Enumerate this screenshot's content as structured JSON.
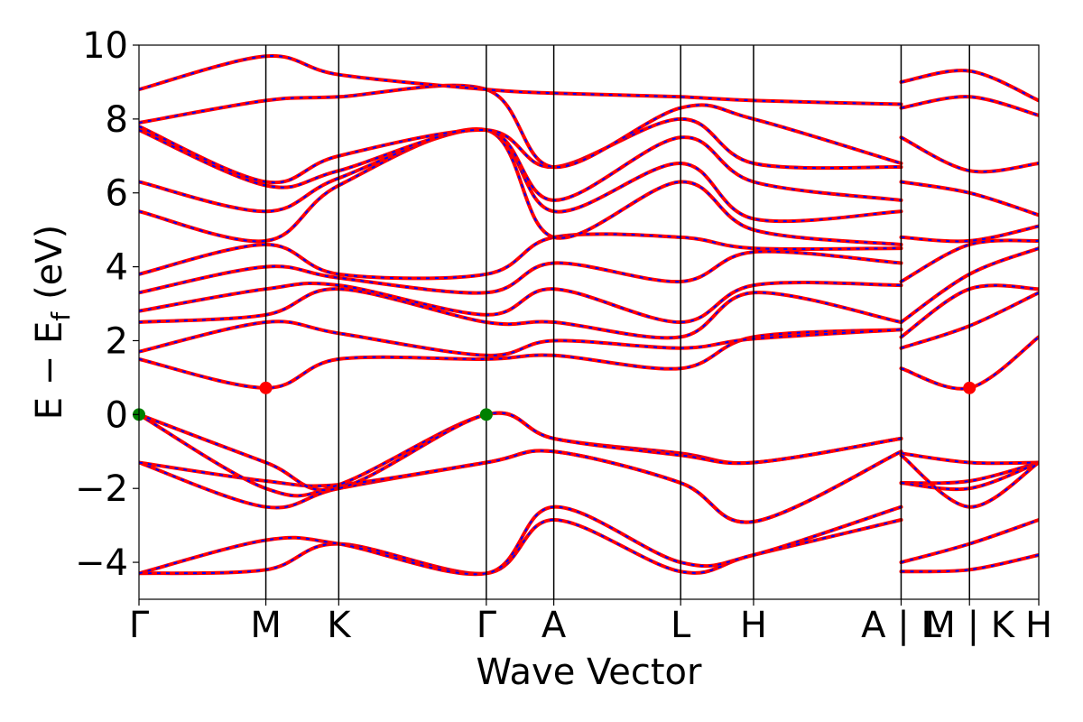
{
  "chart_data": {
    "type": "line",
    "title": "",
    "xlabel": "Wave Vector",
    "ylabel": {
      "main": "E − E",
      "subscript": "f",
      "unit": "(eV)"
    },
    "ylim": [
      -5,
      10
    ],
    "yticks": [
      {
        "value": 10,
        "label": "10"
      },
      {
        "value": 8,
        "label": "8"
      },
      {
        "value": 6,
        "label": "6"
      },
      {
        "value": 4,
        "label": "4"
      },
      {
        "value": 2,
        "label": "2"
      },
      {
        "value": 0,
        "label": "0"
      },
      {
        "value": -2,
        "label": "−2"
      },
      {
        "value": -4,
        "label": "−4"
      }
    ],
    "kpath_length": 1.0,
    "kpoint_ticks": [
      {
        "k": 0.0,
        "label": "Γ"
      },
      {
        "k": 0.141,
        "label": "M"
      },
      {
        "k": 0.222,
        "label": "K"
      },
      {
        "k": 0.386,
        "label": "Γ"
      },
      {
        "k": 0.461,
        "label": "A"
      },
      {
        "k": 0.602,
        "label": "L"
      },
      {
        "k": 0.683,
        "label": "H"
      },
      {
        "k": 0.847,
        "label": "A | L"
      },
      {
        "k": 0.923,
        "label": "M | K"
      },
      {
        "k": 1.0,
        "label": "H"
      }
    ],
    "path_breaks": [
      0.847,
      0.923
    ],
    "grid": false,
    "legend": "none",
    "series_styles": [
      {
        "role": "overlay",
        "color": "#ff0000",
        "dash": "solid"
      },
      {
        "role": "underlay",
        "color": "#0000ff",
        "dash": "dashed"
      }
    ],
    "extrema": [
      {
        "type": "VBM",
        "k": 0.0,
        "energy": 0.0,
        "color": "#008000"
      },
      {
        "type": "VBM",
        "k": 0.386,
        "energy": 0.0,
        "color": "#008000"
      },
      {
        "type": "CBM",
        "k": 0.141,
        "energy": 0.72,
        "color": "#ff0000"
      },
      {
        "type": "CBM",
        "k": 0.923,
        "energy": 0.72,
        "color": "#ff0000"
      }
    ],
    "bands": [
      {
        "k": [
          0,
          0.141,
          0.222,
          0.386,
          0.461,
          0.602,
          0.683,
          0.847
        ],
        "e": [
          -4.3,
          -4.2,
          -3.5,
          -4.3,
          -2.85,
          -4.25,
          -3.8,
          -2.85
        ]
      },
      {
        "k": [
          0,
          0.141,
          0.222,
          0.386,
          0.461,
          0.602,
          0.683,
          0.847
        ],
        "e": [
          -4.3,
          -3.4,
          -3.5,
          -4.3,
          -2.5,
          -4.0,
          -3.8,
          -2.5
        ]
      },
      {
        "k": [
          0,
          0.141,
          0.222,
          0.386,
          0.461,
          0.602,
          0.683,
          0.847
        ],
        "e": [
          -1.3,
          -2.5,
          -2.0,
          -1.3,
          -1.0,
          -1.85,
          -2.9,
          -1.0
        ]
      },
      {
        "k": [
          0,
          0.141,
          0.222,
          0.386,
          0.461,
          0.602,
          0.683,
          0.847
        ],
        "e": [
          -1.3,
          -1.8,
          -1.9,
          -1.3,
          -1.0,
          -1.85,
          -2.9,
          -1.0
        ]
      },
      {
        "k": [
          0,
          0.141,
          0.222,
          0.386,
          0.461,
          0.602,
          0.683,
          0.847
        ],
        "e": [
          0.0,
          -2.0,
          -1.9,
          0.0,
          -0.65,
          -1.05,
          -1.3,
          -0.65
        ]
      },
      {
        "k": [
          0,
          0.141,
          0.222,
          0.386,
          0.461,
          0.602,
          0.683,
          0.847
        ],
        "e": [
          0.0,
          -1.3,
          -2.0,
          0.0,
          -0.65,
          -1.1,
          -1.3,
          -0.65
        ]
      },
      {
        "k": [
          0,
          0.141,
          0.222,
          0.386,
          0.461,
          0.602,
          0.683,
          0.847
        ],
        "e": [
          1.5,
          0.72,
          1.5,
          1.5,
          1.6,
          1.25,
          2.1,
          2.3
        ]
      },
      {
        "k": [
          0,
          0.141,
          0.222,
          0.386,
          0.461,
          0.602,
          0.683,
          0.847
        ],
        "e": [
          1.7,
          2.5,
          2.2,
          1.6,
          2.0,
          1.8,
          2.05,
          2.3
        ]
      },
      {
        "k": [
          0,
          0.141,
          0.222,
          0.386,
          0.461,
          0.602,
          0.683,
          0.847
        ],
        "e": [
          2.5,
          2.7,
          3.4,
          2.5,
          2.5,
          2.1,
          3.3,
          2.5
        ]
      },
      {
        "k": [
          0,
          0.141,
          0.222,
          0.386,
          0.461,
          0.602,
          0.683,
          0.847
        ],
        "e": [
          2.8,
          3.4,
          3.5,
          2.7,
          3.4,
          2.5,
          3.5,
          3.5
        ]
      },
      {
        "k": [
          0,
          0.141,
          0.222,
          0.386,
          0.461,
          0.602,
          0.683,
          0.847
        ],
        "e": [
          3.3,
          4.0,
          3.7,
          3.3,
          4.1,
          3.6,
          4.4,
          4.1
        ]
      },
      {
        "k": [
          0,
          0.141,
          0.222,
          0.386,
          0.461,
          0.602,
          0.683,
          0.847
        ],
        "e": [
          3.8,
          4.6,
          3.8,
          3.8,
          4.8,
          4.8,
          4.5,
          4.5
        ]
      },
      {
        "k": [
          0,
          0.141,
          0.222,
          0.386,
          0.461,
          0.602,
          0.683,
          0.847
        ],
        "e": [
          5.5,
          4.7,
          6.2,
          7.7,
          4.8,
          6.3,
          5.0,
          4.6
        ]
      },
      {
        "k": [
          0,
          0.141,
          0.222,
          0.386,
          0.461,
          0.602,
          0.683,
          0.847
        ],
        "e": [
          6.3,
          5.5,
          6.4,
          7.7,
          5.5,
          6.8,
          5.3,
          5.5
        ]
      },
      {
        "k": [
          0,
          0.141,
          0.222,
          0.386,
          0.461,
          0.602,
          0.683,
          0.847
        ],
        "e": [
          7.7,
          6.2,
          6.6,
          7.7,
          5.8,
          7.5,
          6.3,
          5.8
        ]
      },
      {
        "k": [
          0,
          0.141,
          0.222,
          0.386,
          0.461,
          0.602,
          0.683,
          0.847
        ],
        "e": [
          7.8,
          6.3,
          7.0,
          7.7,
          6.7,
          8.0,
          6.8,
          6.7
        ]
      },
      {
        "k": [
          0,
          0.141,
          0.222,
          0.386,
          0.461,
          0.602,
          0.683,
          0.847
        ],
        "e": [
          7.9,
          8.5,
          8.6,
          8.8,
          6.7,
          8.3,
          8.0,
          6.8
        ]
      },
      {
        "k": [
          0,
          0.141,
          0.222,
          0.386,
          0.461,
          0.602,
          0.683,
          0.847
        ],
        "e": [
          8.8,
          9.7,
          9.2,
          8.8,
          8.7,
          8.6,
          8.5,
          8.4
        ]
      },
      {
        "k": [
          0.847,
          0.923,
          1.0
        ],
        "e": [
          -4.25,
          -4.2,
          -3.8
        ]
      },
      {
        "k": [
          0.847,
          0.923,
          1.0
        ],
        "e": [
          -4.0,
          -3.5,
          -2.85
        ]
      },
      {
        "k": [
          0.847,
          0.923,
          1.0
        ],
        "e": [
          -1.85,
          -1.8,
          -1.3
        ]
      },
      {
        "k": [
          0.847,
          0.923,
          1.0
        ],
        "e": [
          -1.85,
          -2.0,
          -1.3
        ]
      },
      {
        "k": [
          0.847,
          0.923,
          1.0
        ],
        "e": [
          -1.05,
          -1.3,
          -1.3
        ]
      },
      {
        "k": [
          0.847,
          0.923,
          1.0
        ],
        "e": [
          -1.1,
          -2.5,
          -1.3
        ]
      },
      {
        "k": [
          0.847,
          0.923,
          1.0
        ],
        "e": [
          1.25,
          0.72,
          2.1
        ]
      },
      {
        "k": [
          0.847,
          0.923,
          1.0
        ],
        "e": [
          1.8,
          2.4,
          3.3
        ]
      },
      {
        "k": [
          0.847,
          0.923,
          1.0
        ],
        "e": [
          2.1,
          3.4,
          3.4
        ]
      },
      {
        "k": [
          0.847,
          0.923,
          1.0
        ],
        "e": [
          2.5,
          3.8,
          4.5
        ]
      },
      {
        "k": [
          0.847,
          0.923,
          1.0
        ],
        "e": [
          3.6,
          4.6,
          4.7
        ]
      },
      {
        "k": [
          0.847,
          0.923,
          1.0
        ],
        "e": [
          4.8,
          4.7,
          5.1
        ]
      },
      {
        "k": [
          0.847,
          0.923,
          1.0
        ],
        "e": [
          6.3,
          6.0,
          5.4
        ]
      },
      {
        "k": [
          0.847,
          0.923,
          1.0
        ],
        "e": [
          7.5,
          6.6,
          6.8
        ]
      },
      {
        "k": [
          0.847,
          0.923,
          1.0
        ],
        "e": [
          8.3,
          8.6,
          8.1
        ]
      },
      {
        "k": [
          0.847,
          0.923,
          1.0
        ],
        "e": [
          9.0,
          9.3,
          8.5
        ]
      }
    ]
  }
}
